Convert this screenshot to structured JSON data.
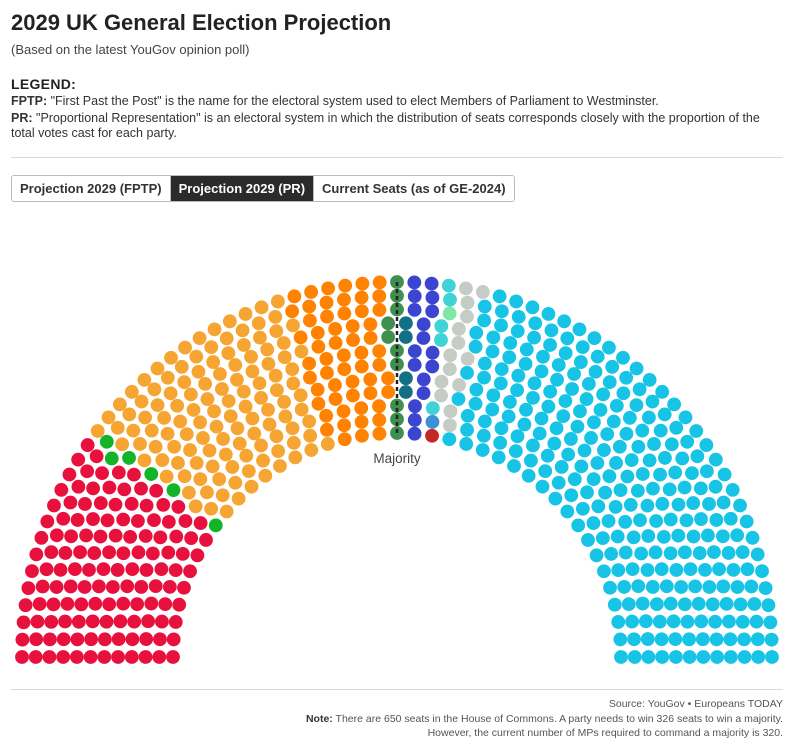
{
  "header": {
    "title": "2029 UK General Election Projection",
    "subtitle": "(Based on the latest YouGov opinion poll)"
  },
  "legend": {
    "heading": "LEGEND:",
    "fptp_term": "FPTP:",
    "fptp_text": " \"First Past the Post\" is the name for the electoral system used to elect Members of Parliament to Westminster.",
    "pr_term": "PR:",
    "pr_text": " \"Proportional Representation\" is an electoral system in which the distribution of seats corresponds closely with the proportion of the total votes cast for each party."
  },
  "tabs": [
    {
      "label": "Projection 2029 (FPTP)",
      "active": false
    },
    {
      "label": "Projection 2029 (PR)",
      "active": true
    },
    {
      "label": "Current Seats (as of GE-2024)",
      "active": false
    }
  ],
  "footer": {
    "source": "Source: YouGov • Europeans TODAY",
    "note_label": "Note:",
    "note_line1": " There are 650 seats in the House of Commons. A party needs to win 326 seats to win a majority.",
    "note_line2": "However, the current number of MPs required to command a majority is 320."
  },
  "chart_data": {
    "type": "parliament",
    "total_seats": 650,
    "majority_label": "Majority",
    "majority_threshold": 326,
    "series": [
      {
        "color": "#e8113d",
        "value": 131
      },
      {
        "color": "#14b428",
        "value": 6
      },
      {
        "color": "#f6a533",
        "value": 125
      },
      {
        "color": "#ff8200",
        "value": 57
      },
      {
        "color": "#3f8f4f",
        "value": 10
      },
      {
        "color": "#136f86",
        "value": 4
      },
      {
        "color": "#3c45cf",
        "value": 17
      },
      {
        "color": "#40d2d6",
        "value": 5
      },
      {
        "color": "#3c91d6",
        "value": 1
      },
      {
        "color": "#7fe8a6",
        "value": 1
      },
      {
        "color": "#c62828",
        "value": 1
      },
      {
        "color": "#c5cbc5",
        "value": 14
      },
      {
        "color": "#18c4e6",
        "value": 278
      }
    ]
  }
}
